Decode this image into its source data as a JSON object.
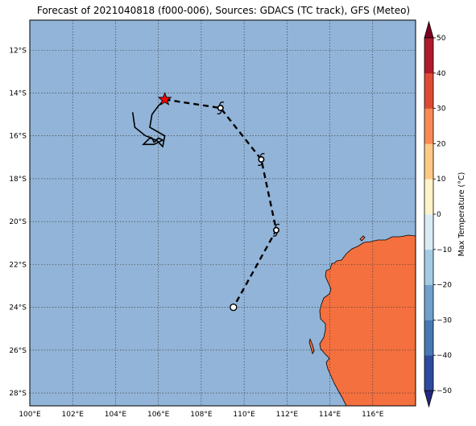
{
  "title": "Forecast of 2021040818 (f000-006), Sources: GDACS (TC track), GFS (Meteo)",
  "map": {
    "lon_range": [
      100,
      118
    ],
    "lat_range": [
      -28.6,
      -10.6
    ],
    "lon_ticks": [
      "100°E",
      "102°E",
      "104°E",
      "106°E",
      "108°E",
      "110°E",
      "112°E",
      "114°E",
      "116°E"
    ],
    "lat_ticks": [
      "12°S",
      "14°S",
      "16°S",
      "18°S",
      "20°S",
      "22°S",
      "24°S",
      "26°S",
      "28°S"
    ],
    "ocean_color": "#92b4d8",
    "land_color": "#f4703f",
    "grid": true
  },
  "track": {
    "past_positions": [
      [
        104.8,
        -14.9
      ],
      [
        104.9,
        -15.6
      ],
      [
        105.4,
        -16.0
      ],
      [
        105.7,
        -16.1
      ],
      [
        105.8,
        -16.3
      ],
      [
        106.0,
        -16.1
      ],
      [
        106.2,
        -16.2
      ],
      [
        105.8,
        -16.4
      ],
      [
        105.3,
        -16.4
      ],
      [
        105.6,
        -16.1
      ],
      [
        105.9,
        -16.2
      ],
      [
        106.2,
        -16.5
      ],
      [
        106.3,
        -16.0
      ],
      [
        105.6,
        -15.6
      ],
      [
        105.7,
        -15.0
      ],
      [
        106.0,
        -14.6
      ],
      [
        106.3,
        -14.3
      ]
    ],
    "current_position": [
      106.3,
      -14.3
    ],
    "forecast_positions": [
      [
        106.3,
        -14.3
      ],
      [
        108.9,
        -14.7
      ],
      [
        110.8,
        -17.1
      ],
      [
        111.5,
        -20.4
      ],
      [
        109.5,
        -24.0
      ]
    ],
    "cyclone_symbols_at": [
      [
        108.9,
        -14.7
      ],
      [
        110.8,
        -17.1
      ],
      [
        111.5,
        -20.4
      ]
    ],
    "low_symbol_at": [
      109.5,
      -24.0
    ],
    "current_marker_color": "#ff0000"
  },
  "colorbar": {
    "label": "Max Temperature (°C)",
    "ticks": [
      "50",
      "40",
      "30",
      "20",
      "10",
      "0",
      "−10",
      "−20",
      "−30",
      "−40",
      "−50"
    ],
    "colors": [
      "#252880",
      "#2e4a9e",
      "#4678b4",
      "#6fa0cc",
      "#a5cbe2",
      "#d9ecf4",
      "#fff4c9",
      "#fec984",
      "#f98a55",
      "#df4a34",
      "#b11a2a",
      "#7c0022"
    ]
  }
}
